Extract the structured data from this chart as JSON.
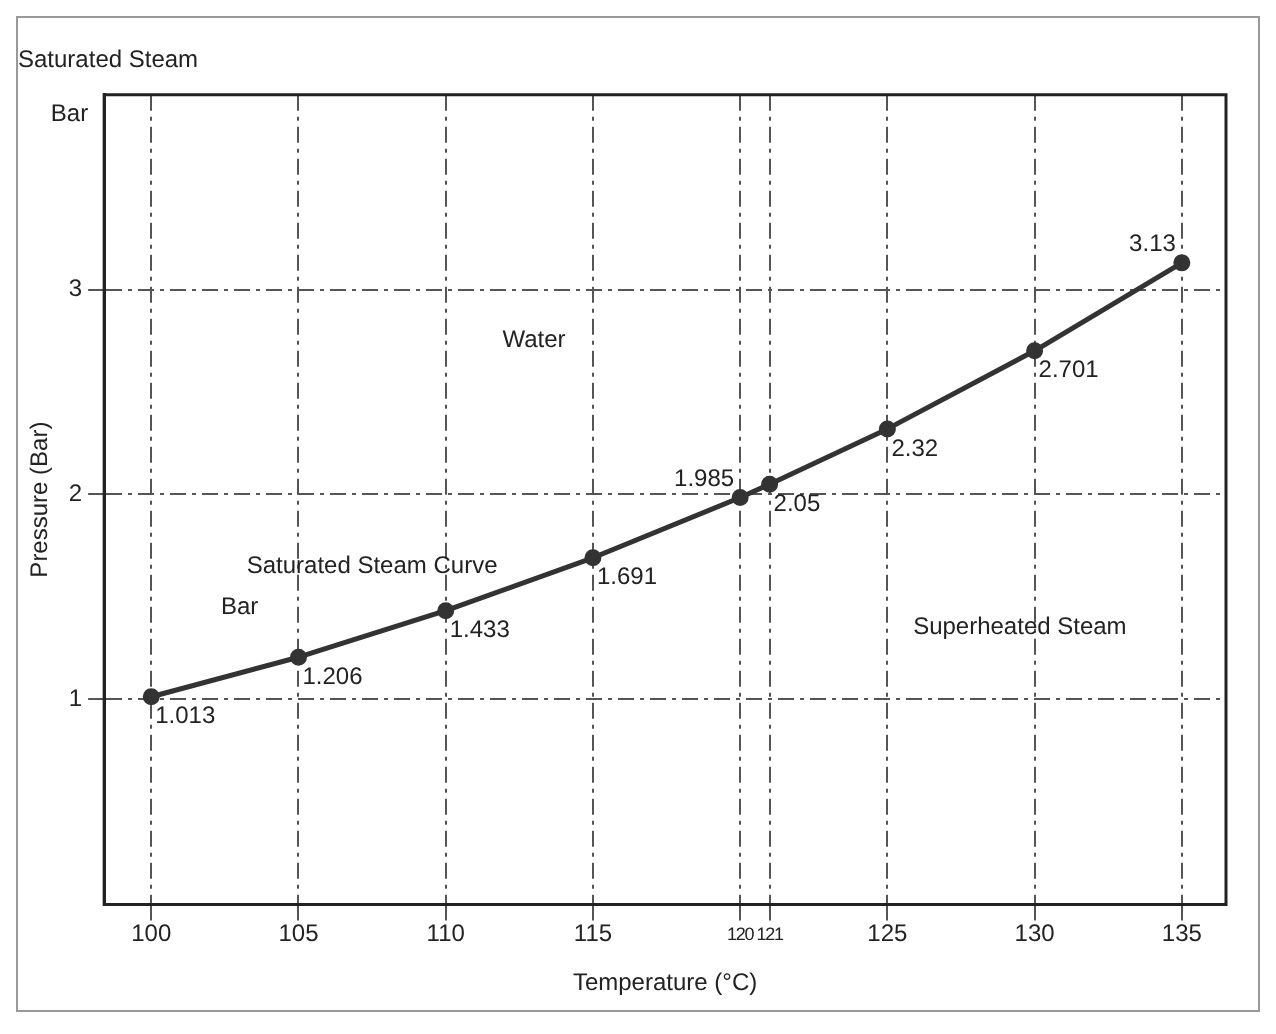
{
  "chart_data": {
    "type": "line",
    "title": "Saturated Steam",
    "xlabel": "Temperature (°C)",
    "ylabel": "Pressure (Bar)",
    "x": [
      100,
      105,
      110,
      115,
      120,
      121,
      125,
      130,
      135
    ],
    "series": [
      {
        "color": "#333333",
        "values": [
          1.013,
          1.206,
          1.433,
          1.691,
          1.985,
          2.05,
          2.32,
          2.701,
          3.13
        ]
      }
    ],
    "xlim": [
      98.4,
      136.5
    ],
    "xticks": [
      100,
      105,
      110,
      115,
      120,
      121,
      125,
      130,
      135
    ],
    "ylim": [
      0,
      3.95
    ],
    "yticks": [
      1,
      2,
      3
    ],
    "grid": true,
    "marker": "circle",
    "line_style": "solid",
    "data_labels": true,
    "legend": false,
    "annotations": [
      "Bar",
      "Water",
      "Saturated Steam Curve",
      "Bar",
      "Superheated Steam"
    ]
  }
}
